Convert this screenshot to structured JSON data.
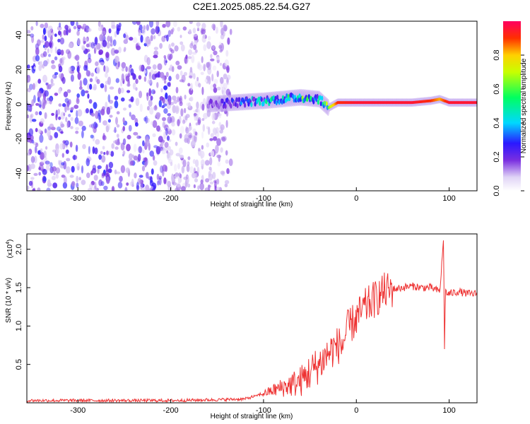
{
  "figure_title": "C2E1.2025.085.22.54.G27",
  "chart_data": [
    {
      "type": "heatmap",
      "title": "C2E1.2025.085.22.54.G27",
      "xlabel": "Height of straight line (km)",
      "ylabel": "Frequency (Hz)",
      "xlim": [
        -355,
        130
      ],
      "ylim": [
        -50,
        48
      ],
      "xticks": [
        -300,
        -200,
        -100,
        0,
        100
      ],
      "yticks": [
        -40,
        -20,
        0,
        20,
        40
      ],
      "colorbar": {
        "label": "Normalized spectral amplitude",
        "range": [
          0,
          1
        ],
        "ticks": [
          "0.0",
          "0.2",
          "0.4",
          "0.6",
          "0.8"
        ],
        "tick_values": [
          0.0,
          0.2,
          0.4,
          0.6,
          0.8
        ],
        "colormap": [
          "#ffffff",
          "#c8b0f0",
          "#7a2fe0",
          "#2a18ff",
          "#00d8ff",
          "#00ff60",
          "#c8ff00",
          "#ffd000",
          "#ff3000",
          "#ff0060"
        ]
      },
      "signal_track": {
        "description_hidden": true,
        "x": [
          -160,
          -130,
          -100,
          -80,
          -60,
          -40,
          -30,
          -20,
          0,
          30,
          60,
          80,
          90,
          100,
          130
        ],
        "y": [
          0,
          1,
          2,
          3,
          4,
          3,
          -2,
          1,
          1,
          1,
          1,
          2,
          3,
          1,
          1
        ],
        "amplitude": [
          0.2,
          0.35,
          0.45,
          0.5,
          0.55,
          0.5,
          0.6,
          0.9,
          0.95,
          0.95,
          0.95,
          0.9,
          0.8,
          0.95,
          0.95
        ]
      },
      "noise_region": {
        "x": [
          -355,
          -135
        ],
        "amplitude": 0.25
      }
    },
    {
      "type": "line",
      "xlabel": "Height of straight line (km)",
      "ylabel": "SNR (10 * v/v)",
      "yscale_label": "(x10",
      "yscale_exponent": "4",
      "xlim": [
        -355,
        130
      ],
      "ylim": [
        0,
        2.2
      ],
      "xticks": [
        -300,
        -200,
        -100,
        0,
        100
      ],
      "yticks": [
        "0.5",
        "1.0",
        "1.5",
        "2.0"
      ],
      "ytick_values": [
        0.5,
        1.0,
        1.5,
        2.0
      ],
      "color": "#ee3333",
      "series": [
        {
          "x": [
            -355,
            -300,
            -250,
            -200,
            -150,
            -120,
            -100,
            -80,
            -60,
            -50,
            -40,
            -30,
            -20,
            -15,
            -10,
            0,
            10,
            20,
            30,
            40,
            50,
            60,
            70,
            80,
            90,
            94,
            95,
            96,
            98,
            100,
            110,
            120,
            130
          ],
          "y": [
            0.03,
            0.03,
            0.03,
            0.03,
            0.04,
            0.05,
            0.12,
            0.2,
            0.28,
            0.4,
            0.5,
            0.65,
            0.75,
            0.75,
            0.95,
            1.1,
            1.25,
            1.35,
            1.45,
            1.48,
            1.5,
            1.52,
            1.5,
            1.5,
            1.45,
            2.15,
            0.7,
            1.45,
            1.42,
            1.42,
            1.45,
            1.42,
            1.42
          ]
        }
      ]
    }
  ]
}
